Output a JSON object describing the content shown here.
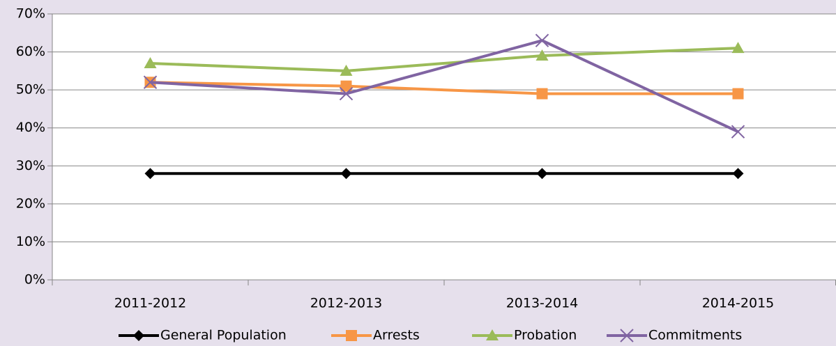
{
  "chart_data": {
    "type": "line",
    "categories": [
      "2011-2012",
      "2012-2013",
      "2013-2014",
      "2014-2015"
    ],
    "series": [
      {
        "name": "General Population",
        "color": "#000000",
        "marker": "diamond",
        "values": [
          28,
          28,
          28,
          28
        ]
      },
      {
        "name": "Arrests",
        "color": "#f79646",
        "marker": "square",
        "values": [
          52,
          51,
          49,
          49
        ]
      },
      {
        "name": "Probation",
        "color": "#9bbb59",
        "marker": "triangle",
        "values": [
          57,
          55,
          59,
          61
        ]
      },
      {
        "name": "Commitments",
        "color": "#8064a2",
        "marker": "x",
        "values": [
          52,
          49,
          63,
          39
        ]
      }
    ],
    "ylim": [
      0,
      70
    ],
    "yticks": [
      {
        "value": 0,
        "label": "0%"
      },
      {
        "value": 10,
        "label": "10%"
      },
      {
        "value": 20,
        "label": "20%"
      },
      {
        "value": 30,
        "label": "30%"
      },
      {
        "value": 40,
        "label": "40%"
      },
      {
        "value": 50,
        "label": "50%"
      },
      {
        "value": 60,
        "label": "60%"
      },
      {
        "value": 70,
        "label": "70%"
      }
    ],
    "grid": true,
    "legend": "bottom"
  }
}
